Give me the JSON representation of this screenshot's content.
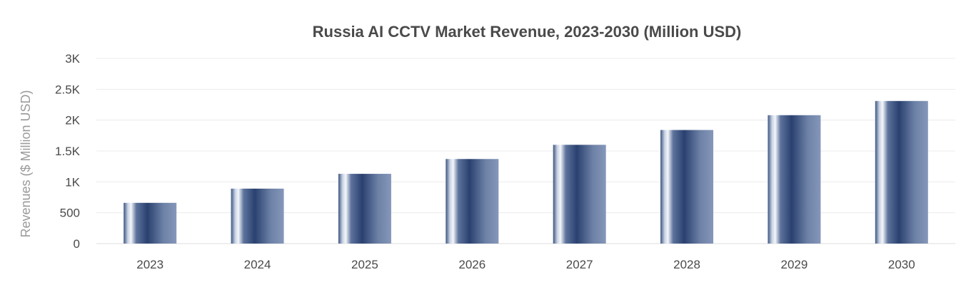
{
  "chart_data": {
    "type": "bar",
    "title": "Russia AI CCTV Market Revenue, 2023-2030 (Million USD)",
    "xlabel": "",
    "ylabel": "Revenues ($ Million USD)",
    "categories": [
      "2023",
      "2024",
      "2025",
      "2026",
      "2027",
      "2028",
      "2029",
      "2030"
    ],
    "values": [
      660,
      890,
      1130,
      1370,
      1600,
      1840,
      2080,
      2310
    ],
    "ylim": [
      0,
      3000
    ],
    "y_ticks": [
      0,
      500,
      1000,
      1500,
      2000,
      2500,
      3000
    ],
    "y_tick_labels": [
      "0",
      "500",
      "1K",
      "1.5K",
      "2K",
      "2.5K",
      "3K"
    ],
    "grid": true,
    "legend": "none",
    "bar_color": "#2c4370"
  }
}
